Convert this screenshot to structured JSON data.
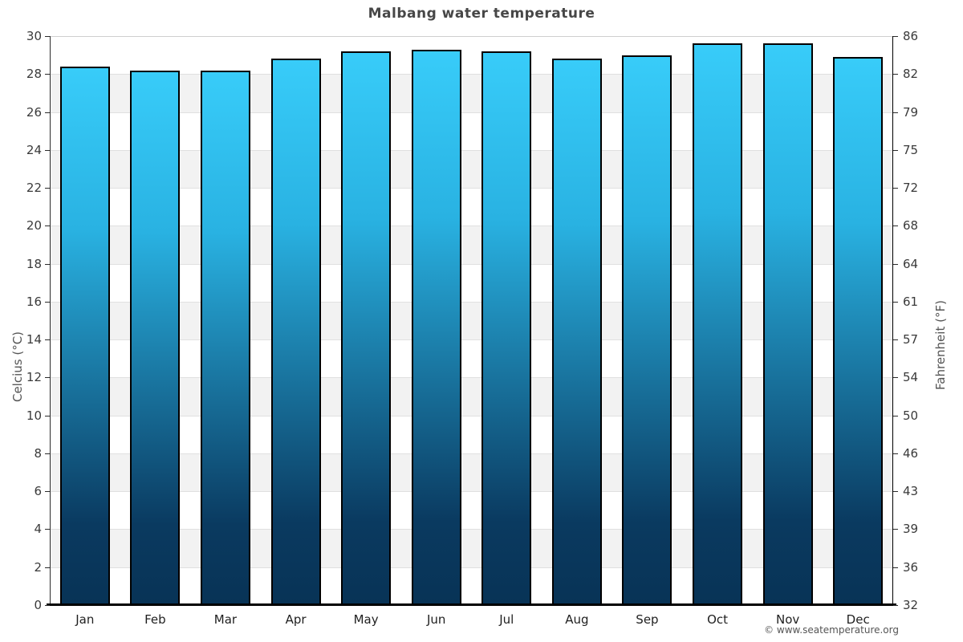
{
  "title": "Malbang water temperature",
  "watermark": "© www.seatemperature.org",
  "axes": {
    "left_title": "Celcius (°C)",
    "right_title": "Fahrenheit (°F)"
  },
  "chart_data": {
    "type": "bar",
    "title": "Malbang water temperature",
    "categories": [
      "Jan",
      "Feb",
      "Mar",
      "Apr",
      "May",
      "Jun",
      "Jul",
      "Aug",
      "Sep",
      "Oct",
      "Nov",
      "Dec"
    ],
    "values": [
      28.4,
      28.2,
      28.2,
      28.8,
      29.2,
      29.3,
      29.2,
      28.8,
      29.0,
      29.6,
      29.6,
      28.9
    ],
    "series_unit": "°C",
    "xlabel": "",
    "ylabel_left": "Celcius (°C)",
    "ylabel_right": "Fahrenheit (°F)",
    "ylim": [
      0,
      30
    ],
    "ytick_step_celsius": 2,
    "yticks_celsius": [
      "0",
      "2",
      "4",
      "6",
      "8",
      "10",
      "12",
      "14",
      "16",
      "18",
      "20",
      "22",
      "24",
      "26",
      "28",
      "30"
    ],
    "yticks_fahrenheit": [
      "32",
      "36",
      "39",
      "43",
      "46",
      "50",
      "54",
      "57",
      "61",
      "64",
      "68",
      "72",
      "75",
      "79",
      "82",
      "86"
    ],
    "grid": "alternating-horizontal-bands",
    "legend": "none",
    "colors": {
      "bar_gradient_top": "#38ccf9",
      "bar_gradient_bottom": "#083356",
      "bar_border": "#000000",
      "band_light": "#ffffff",
      "band_gray": "#f2f2f2",
      "gridline": "#e0e0e0",
      "title_text": "#474747",
      "tick_text": "#3a3a3a",
      "axis_title_text": "#555555"
    }
  }
}
